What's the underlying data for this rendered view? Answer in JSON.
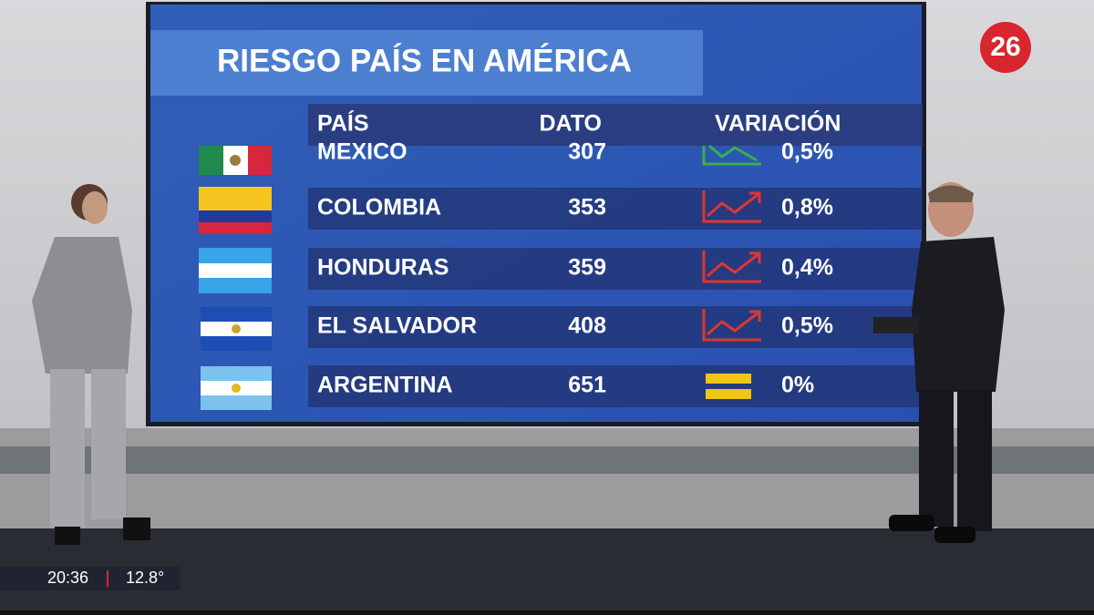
{
  "header": {
    "title": "RIESGO PAÍS EN AMÉRICA"
  },
  "table": {
    "columns": [
      "PAÍS",
      "DATO",
      "VARIACIÓN"
    ],
    "rows": [
      {
        "country": "MEXICO",
        "value": "307",
        "change": "0,5%",
        "trend": "down"
      },
      {
        "country": "COLOMBIA",
        "value": "353",
        "change": "0,8%",
        "trend": "up"
      },
      {
        "country": "HONDURAS",
        "value": "359",
        "change": "0,4%",
        "trend": "up"
      },
      {
        "country": "EL SALVADOR",
        "value": "408",
        "change": "0,5%",
        "trend": "up"
      },
      {
        "country": "ARGENTINA",
        "value": "651",
        "change": "0%",
        "trend": "flat"
      }
    ]
  },
  "channel": {
    "logo": "26"
  },
  "ticker": {
    "time": "20:36",
    "temperature": "12.8°"
  }
}
